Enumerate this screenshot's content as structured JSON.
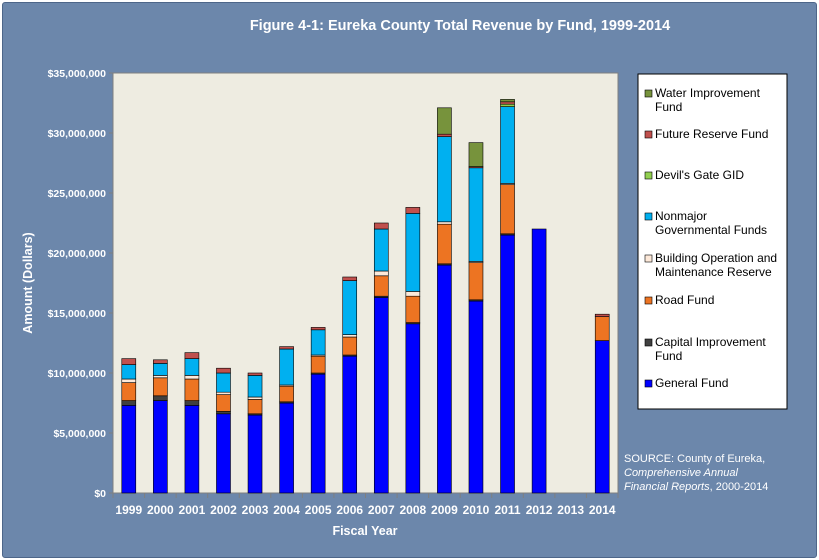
{
  "chart_data": {
    "type": "bar",
    "stacked": true,
    "title": "Figure 4-1: Eureka County Total Revenue by Fund, 1999-2014",
    "xlabel": "Fiscal Year",
    "ylabel": "Amount (Dollars)",
    "ylim": [
      0,
      35000000
    ],
    "ytick_step": 5000000,
    "ytick_labels": [
      "$0",
      "$5,000,000",
      "$10,000,000",
      "$15,000,000",
      "$20,000,000",
      "$25,000,000",
      "$30,000,000",
      "$35,000,000"
    ],
    "categories": [
      "1999",
      "2000",
      "2001",
      "2002",
      "2003",
      "2004",
      "2005",
      "2006",
      "2007",
      "2008",
      "2009",
      "2010",
      "2011",
      "2012",
      "2013",
      "2014"
    ],
    "legend_position": "right",
    "grid": false,
    "series": [
      {
        "name": "General Fund",
        "color": "#0000ff",
        "values": [
          7300000,
          7700000,
          7300000,
          6600000,
          6500000,
          7500000,
          9900000,
          11400000,
          16300000,
          14100000,
          19000000,
          16000000,
          21500000,
          22000000,
          0,
          12700000
        ]
      },
      {
        "name": "Capital Improvement Fund",
        "color": "#404040",
        "values": [
          400000,
          400000,
          400000,
          200000,
          100000,
          100000,
          100000,
          100000,
          100000,
          100000,
          100000,
          100000,
          100000,
          0,
          0,
          0
        ]
      },
      {
        "name": "Road Fund",
        "color": "#ed7422",
        "values": [
          1500000,
          1500000,
          1800000,
          1400000,
          1200000,
          1300000,
          1400000,
          1500000,
          1700000,
          2200000,
          3300000,
          3100000,
          4100000,
          0,
          0,
          2000000
        ]
      },
      {
        "name": "Building Operation and Maintenance Reserve",
        "color": "#fde9d9",
        "values": [
          300000,
          200000,
          300000,
          200000,
          200000,
          100000,
          100000,
          200000,
          400000,
          400000,
          200000,
          100000,
          100000,
          0,
          0,
          0
        ]
      },
      {
        "name": "Nonmajor Governmental Funds",
        "color": "#00b0f0",
        "values": [
          1200000,
          1000000,
          1400000,
          1600000,
          1800000,
          3000000,
          2100000,
          4500000,
          3500000,
          6500000,
          7100000,
          7800000,
          6400000,
          0,
          0,
          0
        ]
      },
      {
        "name": "Devil's Gate GID",
        "color": "#92d050",
        "values": [
          0,
          0,
          0,
          0,
          0,
          0,
          0,
          0,
          0,
          0,
          0,
          0,
          200000,
          0,
          0,
          0
        ]
      },
      {
        "name": "Future Reserve Fund",
        "color": "#c0504d",
        "values": [
          500000,
          300000,
          500000,
          400000,
          200000,
          200000,
          200000,
          300000,
          500000,
          500000,
          200000,
          100000,
          200000,
          0,
          0,
          200000
        ]
      },
      {
        "name": "Water Improvement Fund",
        "color": "#77933c",
        "values": [
          0,
          0,
          0,
          0,
          0,
          0,
          0,
          0,
          0,
          0,
          2200000,
          2000000,
          200000,
          0,
          0,
          0
        ]
      }
    ]
  },
  "source": {
    "line1": "SOURCE: County of Eureka,",
    "line2": "Comprehensive Annual",
    "line3": "Financial Reports",
    "line3_suffix": ", 2000-2014"
  },
  "colors": {
    "background": "#6c87ab",
    "plot_area": "#eeece1",
    "text": "#ffffff"
  }
}
